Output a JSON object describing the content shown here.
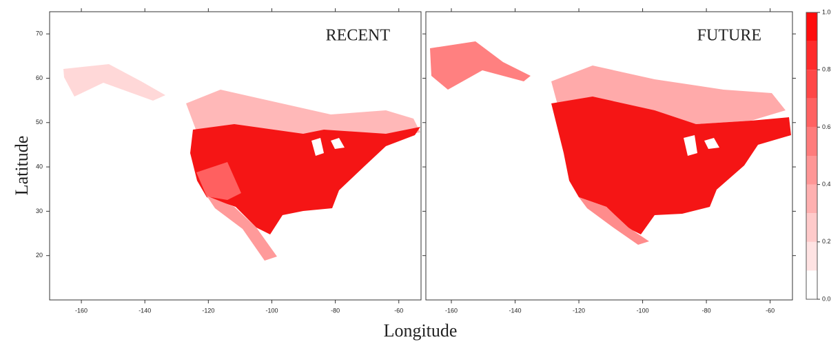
{
  "chart_data": [
    {
      "type": "map",
      "label": "RECENT",
      "xlim": [
        -170,
        -53
      ],
      "ylim": [
        10,
        75
      ],
      "xticks": [
        -160,
        -140,
        -120,
        -100,
        -80,
        -60
      ],
      "yticks": [
        20,
        30,
        40,
        50,
        60,
        70
      ]
    },
    {
      "type": "map",
      "label": "FUTURE",
      "xlim": [
        -168,
        -53
      ],
      "ylim": [
        10,
        75
      ],
      "xticks": [
        -160,
        -140,
        -120,
        -100,
        -80,
        -60
      ],
      "yticks": [
        20,
        30,
        40,
        50,
        60,
        70
      ]
    }
  ],
  "x_label": "Longitude",
  "y_label": "Latitude",
  "colorbar": {
    "lim": [
      0,
      1
    ],
    "ticks": [
      {
        "value": 0,
        "label": "0.0"
      },
      0.2,
      0.4,
      0.6,
      0.8,
      {
        "value": 1,
        "label": "1.0"
      }
    ],
    "colors": [
      "#ffffff",
      "#ffe3e3",
      "#ffcaca",
      "#ffb0b0",
      "#ff9696",
      "#ff7c7c",
      "#ff6262",
      "#ff4747",
      "#ff2b2b",
      "#ff0d0d"
    ]
  }
}
